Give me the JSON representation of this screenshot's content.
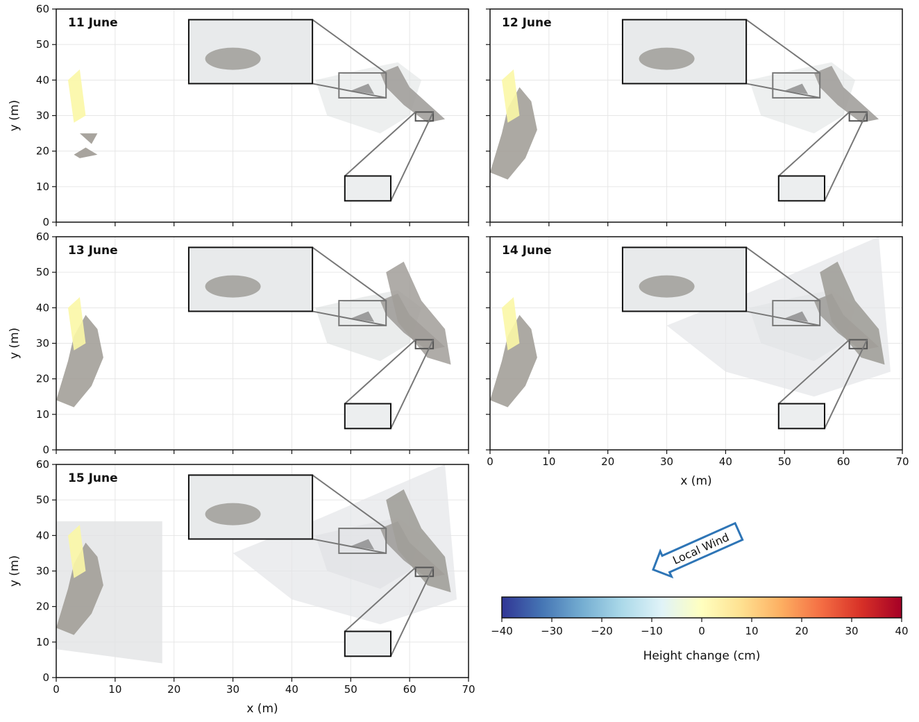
{
  "chart_data": [
    {
      "type": "map",
      "title": "11 June",
      "ylabel": "y (m)",
      "xlim": [
        0,
        70
      ],
      "ylim": [
        0,
        60
      ],
      "xticks": [
        0,
        10,
        20,
        30,
        40,
        50,
        60,
        70
      ],
      "yticks": [
        0,
        10,
        20,
        30,
        40,
        50,
        60
      ],
      "grid": true
    },
    {
      "type": "map",
      "title": "12 June",
      "xlim": [
        0,
        70
      ],
      "ylim": [
        0,
        60
      ],
      "xticks": [
        0,
        10,
        20,
        30,
        40,
        50,
        60,
        70
      ],
      "yticks": [
        0,
        10,
        20,
        30,
        40,
        50,
        60
      ],
      "grid": true
    },
    {
      "type": "map",
      "title": "13 June",
      "ylabel": "y (m)",
      "xlim": [
        0,
        70
      ],
      "ylim": [
        0,
        60
      ],
      "xticks": [
        0,
        10,
        20,
        30,
        40,
        50,
        60,
        70
      ],
      "yticks": [
        0,
        10,
        20,
        30,
        40,
        50,
        60
      ],
      "grid": true
    },
    {
      "type": "map",
      "title": "14 June",
      "xlabel": "x (m)",
      "xlim": [
        0,
        70
      ],
      "ylim": [
        0,
        60
      ],
      "xticks": [
        0,
        10,
        20,
        30,
        40,
        50,
        60,
        70
      ],
      "yticks": [
        0,
        10,
        20,
        30,
        40,
        50,
        60
      ],
      "grid": true
    },
    {
      "type": "map",
      "title": "15 June",
      "xlabel": "x (m)",
      "ylabel": "y (m)",
      "xlim": [
        0,
        70
      ],
      "ylim": [
        0,
        60
      ],
      "xticks": [
        0,
        10,
        20,
        30,
        40,
        50,
        60,
        70
      ],
      "yticks": [
        0,
        10,
        20,
        30,
        40,
        50,
        60
      ],
      "grid": true
    },
    {
      "type": "colorbar",
      "label": "Height change (cm)",
      "annotation": "Local Wind",
      "lim": [
        -40,
        40
      ],
      "ticks": [
        {
          "value": -40,
          "label": "−40"
        },
        {
          "value": -30,
          "label": "−30"
        },
        {
          "value": -20,
          "label": "−20"
        },
        {
          "value": -10,
          "label": "−10"
        },
        0,
        10,
        20,
        30,
        40
      ],
      "colormap": [
        "#313695",
        "#4575b4",
        "#74add1",
        "#abd9e9",
        "#e0f3f8",
        "#ffffbf",
        "#fee090",
        "#fdae61",
        "#f46d43",
        "#d73027",
        "#a50026"
      ]
    }
  ]
}
